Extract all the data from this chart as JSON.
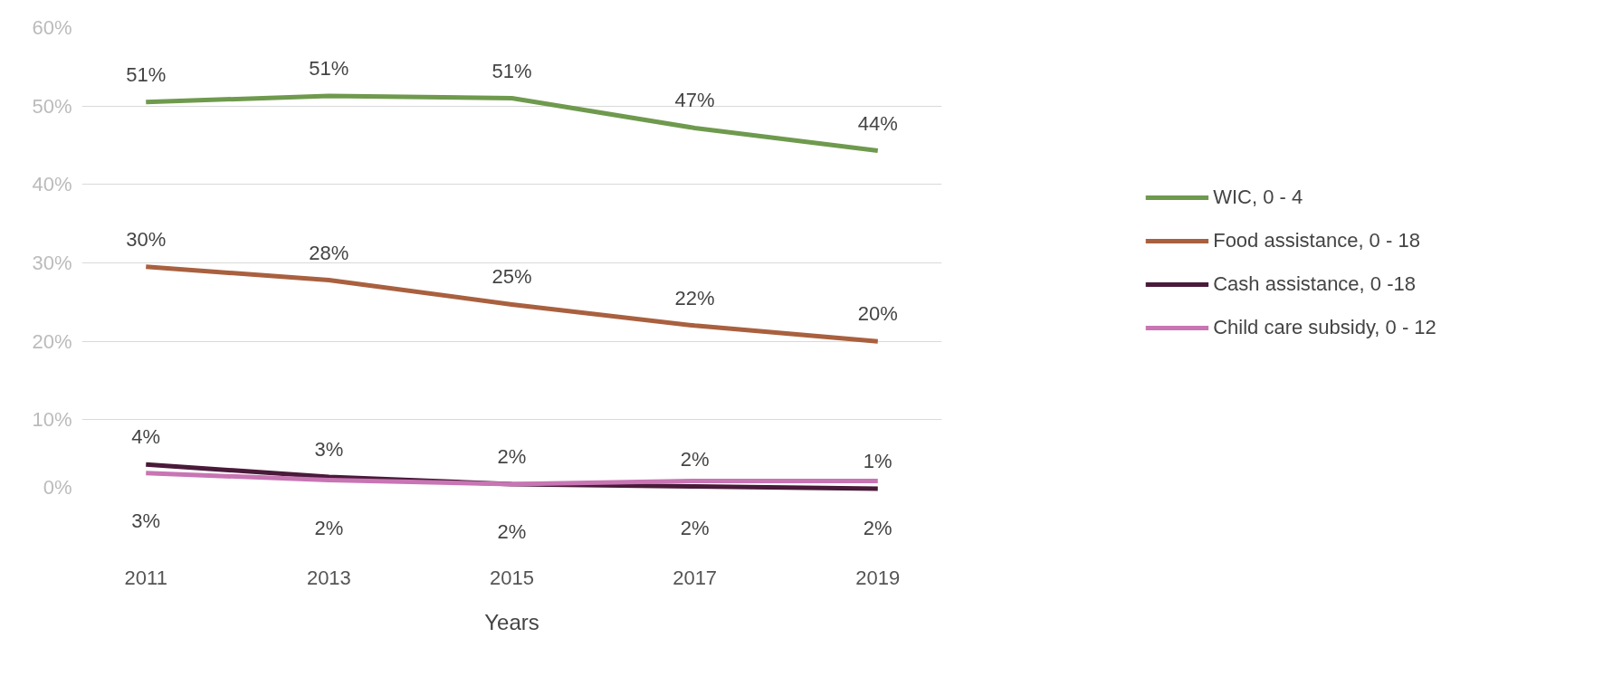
{
  "chart_data": {
    "type": "line",
    "xlabel": "Years",
    "categories": [
      "2011",
      "2013",
      "2015",
      "2017",
      "2019"
    ],
    "ylim": [
      0,
      60
    ],
    "yticks": [
      {
        "value": 0,
        "label": "0%"
      },
      {
        "value": 10,
        "label": "10%"
      },
      {
        "value": 20,
        "label": "20%"
      },
      {
        "value": 30,
        "label": "30%"
      },
      {
        "value": 40,
        "label": "40%"
      },
      {
        "value": 50,
        "label": "50%"
      },
      {
        "value": 60,
        "label": "60%"
      }
    ],
    "grid": "y",
    "legend": "right",
    "marker": "none",
    "line_style": "solid",
    "series": [
      {
        "name": "WIC, 0 - 4",
        "color": "#6f9a4e",
        "values": [
          50.5,
          51.3,
          51.0,
          47.2,
          44.3
        ],
        "value_labels": [
          "51%",
          "51%",
          "51%",
          "47%",
          "44%"
        ]
      },
      {
        "name": "Food assistance, 0 - 18",
        "color": "#a9603f",
        "values": [
          29.5,
          27.8,
          24.7,
          22.0,
          20.0
        ],
        "value_labels": [
          "30%",
          "28%",
          "25%",
          "22%",
          "20%"
        ]
      },
      {
        "name": "Cash assistance, 0 -18",
        "color": "#4a1a3a",
        "values": [
          4.3,
          2.7,
          1.8,
          1.5,
          1.2
        ],
        "value_labels": [
          "4%",
          "3%",
          "2%",
          "2%",
          "1%"
        ]
      },
      {
        "name": "Child care subsidy, 0 - 12",
        "color": "#c875b4",
        "values": [
          3.2,
          2.3,
          1.8,
          2.2,
          2.2
        ],
        "value_labels": [
          "3%",
          "2%",
          "2%",
          "2%",
          "2%"
        ]
      }
    ]
  }
}
